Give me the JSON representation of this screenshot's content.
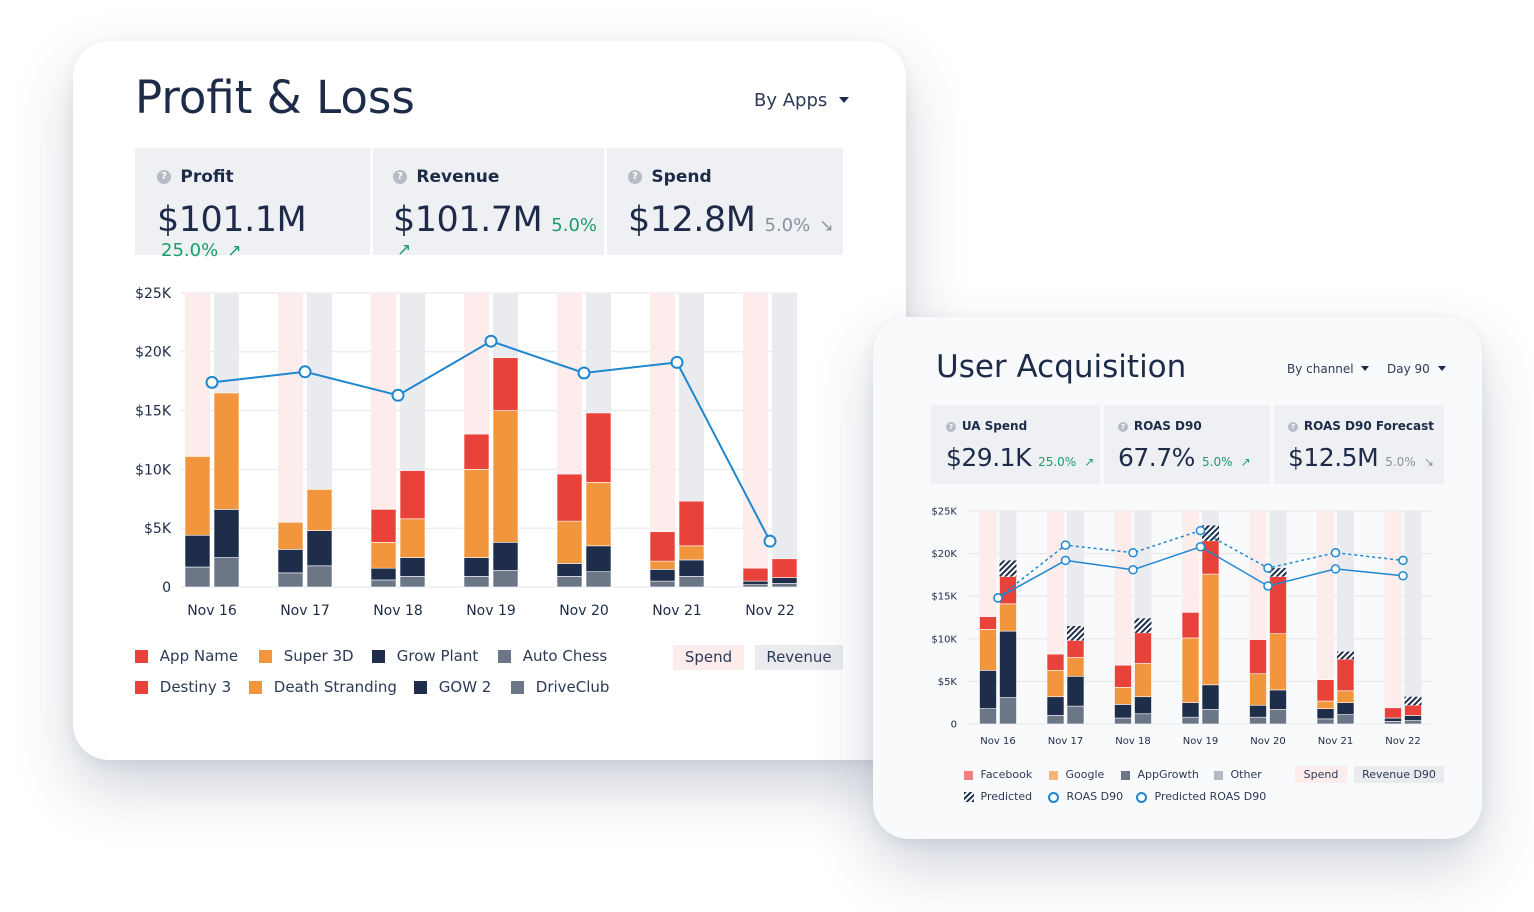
{
  "colors": {
    "red": "#e8423b",
    "orange": "#f2963e",
    "navy": "#1e2d4a",
    "slate": "#6b7686",
    "line": "#1f87cf",
    "spend_band": "#fcecec",
    "revenue_band": "#e9ebef",
    "up": "#1a9e6b",
    "down": "#8a92a0"
  },
  "pl": {
    "title": "Profit & Loss",
    "dropdown": "By Apps",
    "metrics": [
      {
        "label": "Profit",
        "value": "$101.1M",
        "change": "25.0%",
        "trend": "up",
        "arrow": "↗"
      },
      {
        "label": "Revenue",
        "value": "$101.7M",
        "change": "5.0%",
        "trend": "up",
        "arrow": "↗"
      },
      {
        "label": "Spend",
        "value": "$12.8M",
        "change": "5.0%",
        "trend": "down",
        "arrow": "↘"
      }
    ],
    "legend": [
      {
        "label": "App Name",
        "color": "#e8423b"
      },
      {
        "label": "Super 3D",
        "color": "#f2963e"
      },
      {
        "label": "Grow Plant",
        "color": "#1e2d4a"
      },
      {
        "label": "Auto Chess",
        "color": "#6b7686"
      },
      {
        "label": "Destiny 3",
        "color": "#e8423b"
      },
      {
        "label": "Death Stranding",
        "color": "#f2963e"
      },
      {
        "label": "GOW 2",
        "color": "#1e2d4a"
      },
      {
        "label": "DriveClub",
        "color": "#6b7686"
      }
    ],
    "spend_pill": "Spend",
    "revenue_pill": "Revenue"
  },
  "ua": {
    "title": "User Acquisition",
    "dropdown_channel": "By channel",
    "dropdown_day": "Day 90",
    "metrics": [
      {
        "label": "UA Spend",
        "value": "$29.1K",
        "change": "25.0%",
        "trend": "up",
        "arrow": "↗"
      },
      {
        "label": "ROAS D90",
        "value": "67.7%",
        "change": "5.0%",
        "trend": "up",
        "arrow": "↗"
      },
      {
        "label": "ROAS D90 Forecast",
        "value": "$12.5M",
        "change": "5.0%",
        "trend": "down",
        "arrow": "↘"
      }
    ],
    "legend": {
      "facebook": "Facebook",
      "google": "Google",
      "appgrowth": "AppGrowth",
      "other": "Other",
      "predicted": "Predicted",
      "roas": "ROAS D90",
      "predicted_roas": "Predicted ROAS D90"
    },
    "spend_pill": "Spend",
    "revenue_pill": "Revenue D90"
  },
  "chart_data": [
    {
      "id": "pl-chart",
      "type": "bar",
      "categories": [
        "Nov 16",
        "Nov 17",
        "Nov 18",
        "Nov 19",
        "Nov 20",
        "Nov 21",
        "Nov 22"
      ],
      "y_ticks": [
        "0",
        "$5K",
        "$10K",
        "$15K",
        "$20K",
        "$25K"
      ],
      "ylim": [
        0,
        25000
      ],
      "spend_bars": [
        {
          "slate": 1700,
          "navy": 2700,
          "orange": 6700,
          "red": 0
        },
        {
          "slate": 1200,
          "navy": 2000,
          "orange": 2300,
          "red": 0
        },
        {
          "slate": 600,
          "navy": 1000,
          "orange": 2200,
          "red": 2800
        },
        {
          "slate": 900,
          "navy": 1600,
          "orange": 7500,
          "red": 3000
        },
        {
          "slate": 900,
          "navy": 1100,
          "orange": 3600,
          "red": 4000
        },
        {
          "slate": 500,
          "navy": 1000,
          "orange": 700,
          "red": 2500
        },
        {
          "slate": 200,
          "navy": 300,
          "orange": 0,
          "red": 1100
        }
      ],
      "revenue_bars": [
        {
          "slate": 2500,
          "navy": 4100,
          "orange": 9900,
          "red": 0
        },
        {
          "slate": 1800,
          "navy": 3000,
          "orange": 3500,
          "red": 0
        },
        {
          "slate": 900,
          "navy": 1600,
          "orange": 3300,
          "red": 4100
        },
        {
          "slate": 1400,
          "navy": 2400,
          "orange": 11200,
          "red": 4500
        },
        {
          "slate": 1300,
          "navy": 2200,
          "orange": 5400,
          "red": 5900
        },
        {
          "slate": 900,
          "navy": 1400,
          "orange": 1200,
          "red": 3800
        },
        {
          "slate": 300,
          "navy": 500,
          "orange": 0,
          "red": 1600
        }
      ],
      "line_values": [
        17400,
        18300,
        16300,
        20900,
        18200,
        19100,
        3900
      ]
    },
    {
      "id": "ua-chart",
      "type": "bar",
      "categories": [
        "Nov 16",
        "Nov 17",
        "Nov 18",
        "Nov 19",
        "Nov 20",
        "Nov 21",
        "Nov 22"
      ],
      "y_ticks": [
        "0",
        "$5K",
        "$10K",
        "$15K",
        "$20K",
        "$25K"
      ],
      "ylim": [
        0,
        25000
      ],
      "spend_bars": [
        {
          "slate": 1800,
          "navy": 4500,
          "orange": 4800,
          "red": 1500
        },
        {
          "slate": 1000,
          "navy": 2200,
          "orange": 3100,
          "red": 1900
        },
        {
          "slate": 700,
          "navy": 1600,
          "orange": 2000,
          "red": 2600
        },
        {
          "slate": 800,
          "navy": 1700,
          "orange": 7600,
          "red": 3000
        },
        {
          "slate": 800,
          "navy": 1400,
          "orange": 3700,
          "red": 4000
        },
        {
          "slate": 600,
          "navy": 1200,
          "orange": 900,
          "red": 2500
        },
        {
          "slate": 300,
          "navy": 400,
          "orange": 0,
          "red": 1200
        }
      ],
      "revenue_bars": [
        {
          "slate": 3100,
          "navy": 7800,
          "orange": 3200,
          "red": 3200,
          "predicted": 1900
        },
        {
          "slate": 2100,
          "navy": 3500,
          "orange": 2200,
          "red": 2000,
          "predicted": 1700
        },
        {
          "slate": 1200,
          "navy": 2000,
          "orange": 3900,
          "red": 3600,
          "predicted": 1700
        },
        {
          "slate": 1700,
          "navy": 2900,
          "orange": 13000,
          "red": 3900,
          "predicted": 1800
        },
        {
          "slate": 1700,
          "navy": 2300,
          "orange": 6600,
          "red": 6700,
          "predicted": 1000
        },
        {
          "slate": 1100,
          "navy": 1400,
          "orange": 1400,
          "red": 3700,
          "predicted": 900
        },
        {
          "slate": 400,
          "navy": 600,
          "orange": 0,
          "red": 1200,
          "predicted": 1000
        }
      ],
      "roas_values": [
        14800,
        19200,
        18100,
        20800,
        16200,
        18200,
        17400
      ],
      "predicted_roas_values": [
        14800,
        21000,
        20100,
        22700,
        18300,
        20100,
        19200
      ]
    }
  ]
}
